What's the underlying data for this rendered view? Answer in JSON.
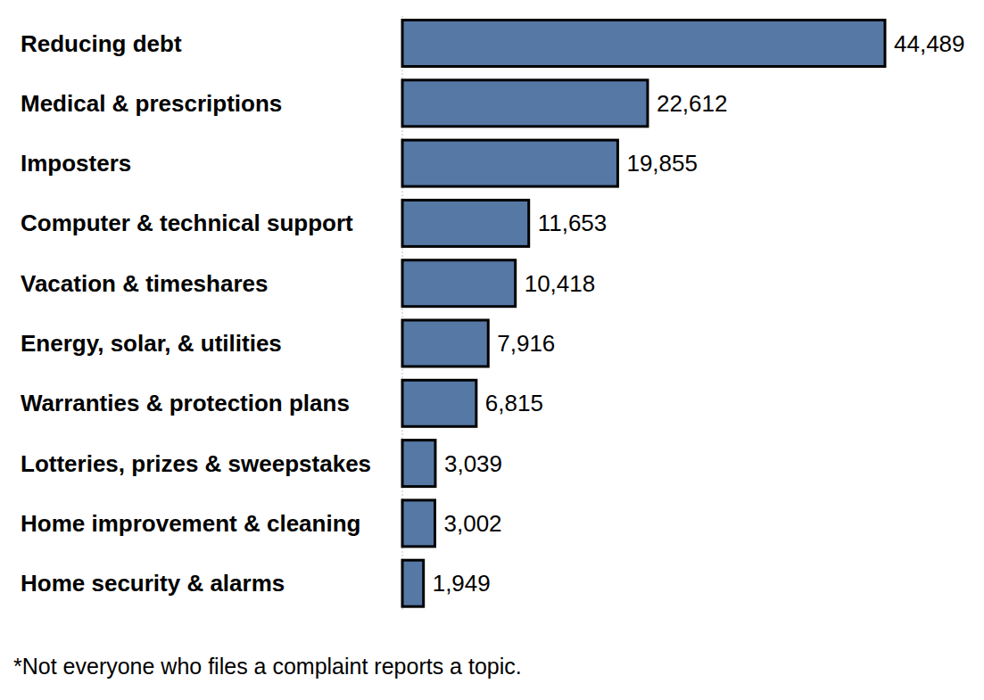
{
  "chart_data": {
    "type": "bar",
    "orientation": "horizontal",
    "categories": [
      "Reducing debt",
      "Medical & prescriptions",
      "Imposters",
      "Computer & technical support",
      "Vacation & timeshares",
      "Energy, solar, & utilities",
      "Warranties & protection plans",
      "Lotteries, prizes & sweepstakes",
      "Home improvement & cleaning",
      "Home security & alarms"
    ],
    "values": [
      44489,
      22612,
      19855,
      11653,
      10418,
      7916,
      6815,
      3039,
      3002,
      1949
    ],
    "value_labels": [
      "44,489",
      "22,612",
      "19,855",
      "11,653",
      "10,418",
      "7,916",
      "6,815",
      "3,039",
      "3,002",
      "1,949"
    ],
    "data_labels": true,
    "color": "#5578a5",
    "xlim": [
      0,
      50000
    ],
    "tick_labels": false,
    "grid": false,
    "footnote": "*Not everyone who files a complaint reports a topic."
  }
}
